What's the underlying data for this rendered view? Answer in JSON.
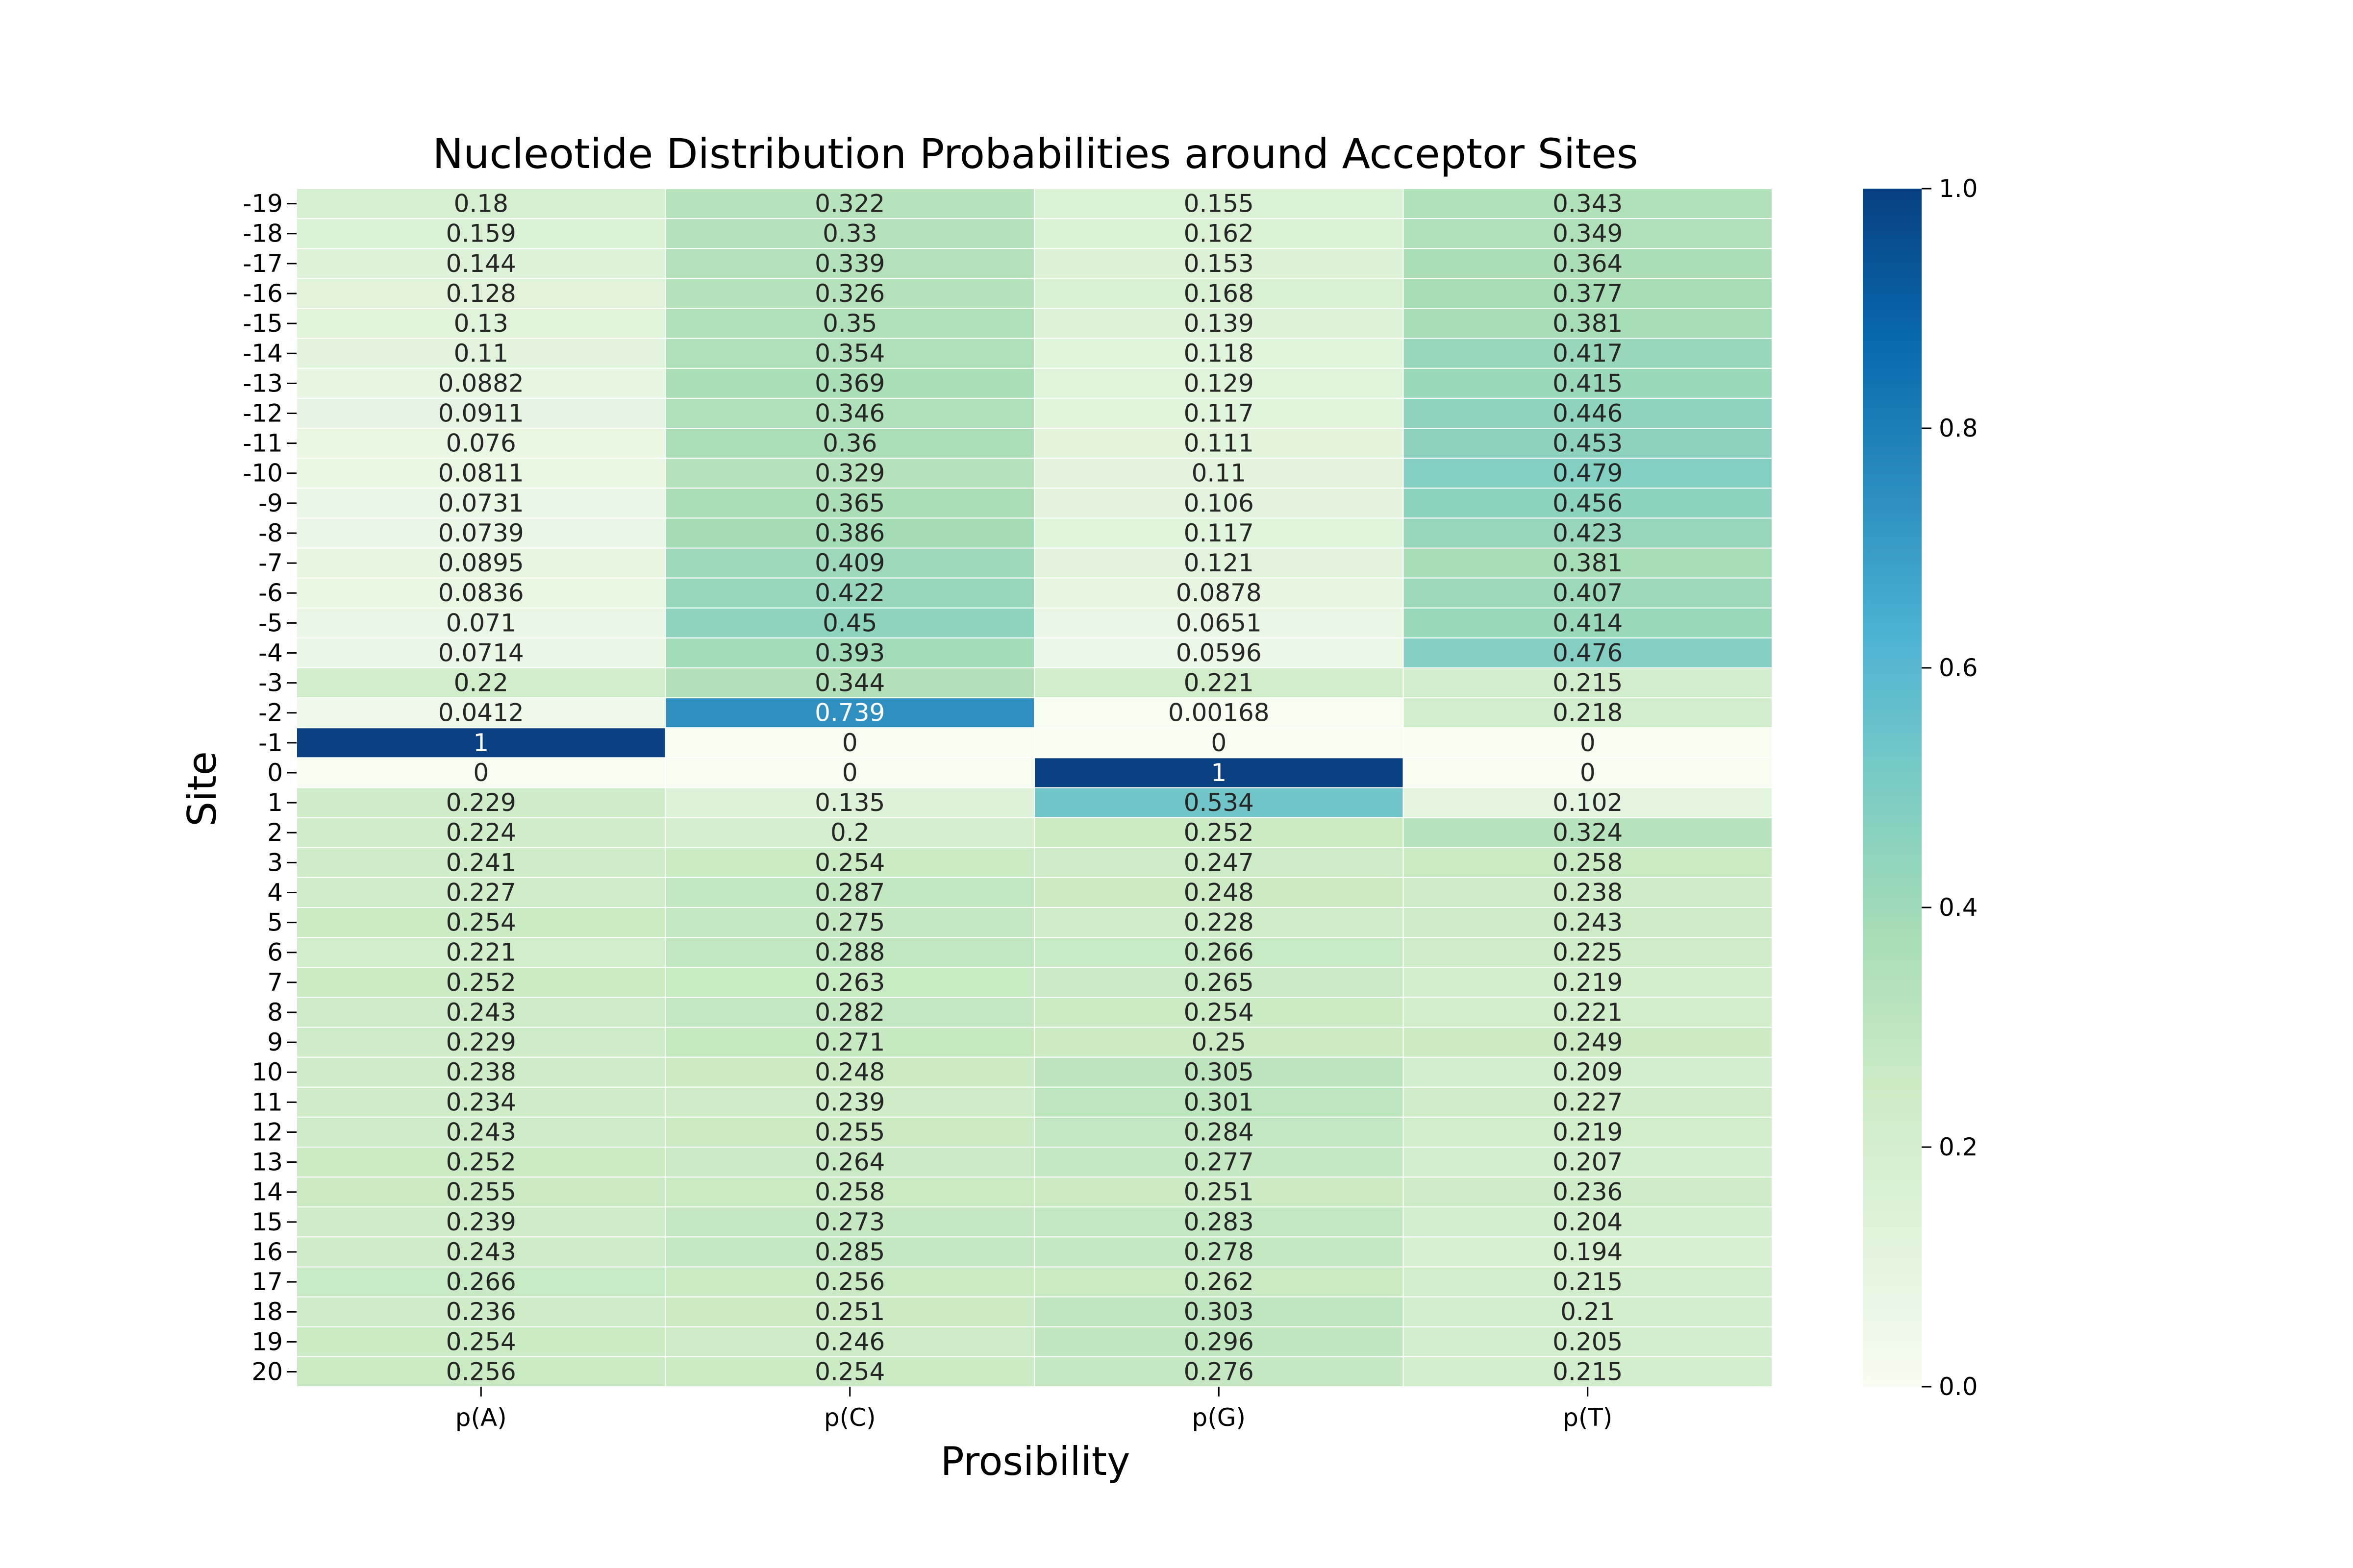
{
  "chart_data": {
    "type": "heatmap",
    "title": "Nucleotide Distribution Probabilities around Acceptor Sites",
    "xlabel": "Prosibility",
    "ylabel": "Site",
    "columns": [
      "p(A)",
      "p(C)",
      "p(G)",
      "p(T)"
    ],
    "rows": [
      "-19",
      "-18",
      "-17",
      "-16",
      "-15",
      "-14",
      "-13",
      "-12",
      "-11",
      "-10",
      "-9",
      "-8",
      "-7",
      "-6",
      "-5",
      "-4",
      "-3",
      "-2",
      "-1",
      "0",
      "1",
      "2",
      "3",
      "4",
      "5",
      "6",
      "7",
      "8",
      "9",
      "10",
      "11",
      "12",
      "13",
      "14",
      "15",
      "16",
      "17",
      "18",
      "19",
      "20"
    ],
    "values": [
      [
        0.18,
        0.322,
        0.155,
        0.343
      ],
      [
        0.159,
        0.33,
        0.162,
        0.349
      ],
      [
        0.144,
        0.339,
        0.153,
        0.364
      ],
      [
        0.128,
        0.326,
        0.168,
        0.377
      ],
      [
        0.13,
        0.35,
        0.139,
        0.381
      ],
      [
        0.11,
        0.354,
        0.118,
        0.417
      ],
      [
        0.0882,
        0.369,
        0.129,
        0.415
      ],
      [
        0.0911,
        0.346,
        0.117,
        0.446
      ],
      [
        0.076,
        0.36,
        0.111,
        0.453
      ],
      [
        0.0811,
        0.329,
        0.11,
        0.479
      ],
      [
        0.0731,
        0.365,
        0.106,
        0.456
      ],
      [
        0.0739,
        0.386,
        0.117,
        0.423
      ],
      [
        0.0895,
        0.409,
        0.121,
        0.381
      ],
      [
        0.0836,
        0.422,
        0.0878,
        0.407
      ],
      [
        0.071,
        0.45,
        0.0651,
        0.414
      ],
      [
        0.0714,
        0.393,
        0.0596,
        0.476
      ],
      [
        0.22,
        0.344,
        0.221,
        0.215
      ],
      [
        0.0412,
        0.739,
        0.00168,
        0.218
      ],
      [
        1,
        0,
        0,
        0
      ],
      [
        0,
        0,
        1,
        0
      ],
      [
        0.229,
        0.135,
        0.534,
        0.102
      ],
      [
        0.224,
        0.2,
        0.252,
        0.324
      ],
      [
        0.241,
        0.254,
        0.247,
        0.258
      ],
      [
        0.227,
        0.287,
        0.248,
        0.238
      ],
      [
        0.254,
        0.275,
        0.228,
        0.243
      ],
      [
        0.221,
        0.288,
        0.266,
        0.225
      ],
      [
        0.252,
        0.263,
        0.265,
        0.219
      ],
      [
        0.243,
        0.282,
        0.254,
        0.221
      ],
      [
        0.229,
        0.271,
        0.25,
        0.249
      ],
      [
        0.238,
        0.248,
        0.305,
        0.209
      ],
      [
        0.234,
        0.239,
        0.301,
        0.227
      ],
      [
        0.243,
        0.255,
        0.284,
        0.219
      ],
      [
        0.252,
        0.264,
        0.277,
        0.207
      ],
      [
        0.255,
        0.258,
        0.251,
        0.236
      ],
      [
        0.239,
        0.273,
        0.283,
        0.204
      ],
      [
        0.243,
        0.285,
        0.278,
        0.194
      ],
      [
        0.266,
        0.256,
        0.262,
        0.215
      ],
      [
        0.236,
        0.251,
        0.303,
        0.21
      ],
      [
        0.254,
        0.246,
        0.296,
        0.205
      ],
      [
        0.256,
        0.254,
        0.276,
        0.215
      ]
    ],
    "colormap": "GnBu",
    "colorbar": {
      "range": [
        0.0,
        1.0
      ],
      "ticks": [
        "0.0",
        "0.2",
        "0.4",
        "0.6",
        "0.8",
        "1.0"
      ]
    },
    "grid": false,
    "legend": "colorbar-right"
  }
}
